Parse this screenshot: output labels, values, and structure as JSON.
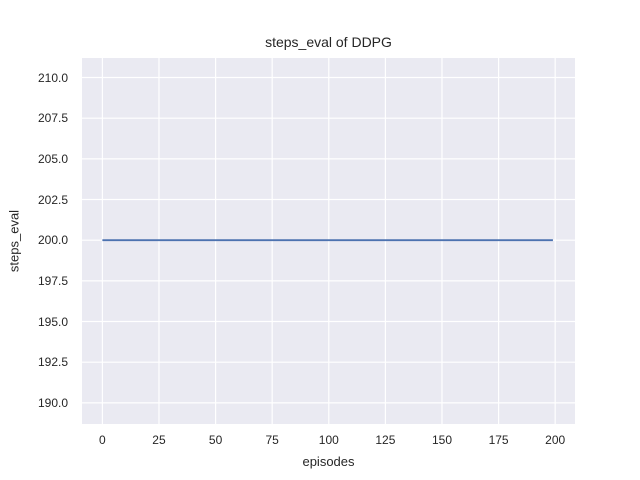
{
  "chart_data": {
    "type": "line",
    "title": "steps_eval of DDPG",
    "xlabel": "episodes",
    "ylabel": "steps_eval",
    "x": [
      0,
      199
    ],
    "series": [
      {
        "name": "steps_eval",
        "values": [
          200,
          200
        ],
        "color": "#4c72b0"
      }
    ],
    "xlim": [
      -9.0,
      208.75
    ],
    "ylim": [
      188.7,
      211.2
    ],
    "xticks": {
      "values": [
        0,
        25,
        50,
        75,
        100,
        125,
        150,
        175,
        200
      ],
      "labels": [
        "0",
        "25",
        "50",
        "75",
        "100",
        "125",
        "150",
        "175",
        "200"
      ]
    },
    "yticks": {
      "values": [
        190,
        192.5,
        195,
        197.5,
        200,
        202.5,
        205,
        207.5,
        210
      ],
      "labels": [
        "190.0",
        "192.5",
        "195.0",
        "197.5",
        "200.0",
        "202.5",
        "205.0",
        "207.5",
        "210.0"
      ]
    },
    "grid": true,
    "legend": false,
    "style": {
      "figure_bg": "#ffffff",
      "plot_bg": "#eaeaf2",
      "grid_color": "#ffffff",
      "text_color": "#262626",
      "grid_width": 1.2,
      "line_width": 1.8
    }
  }
}
